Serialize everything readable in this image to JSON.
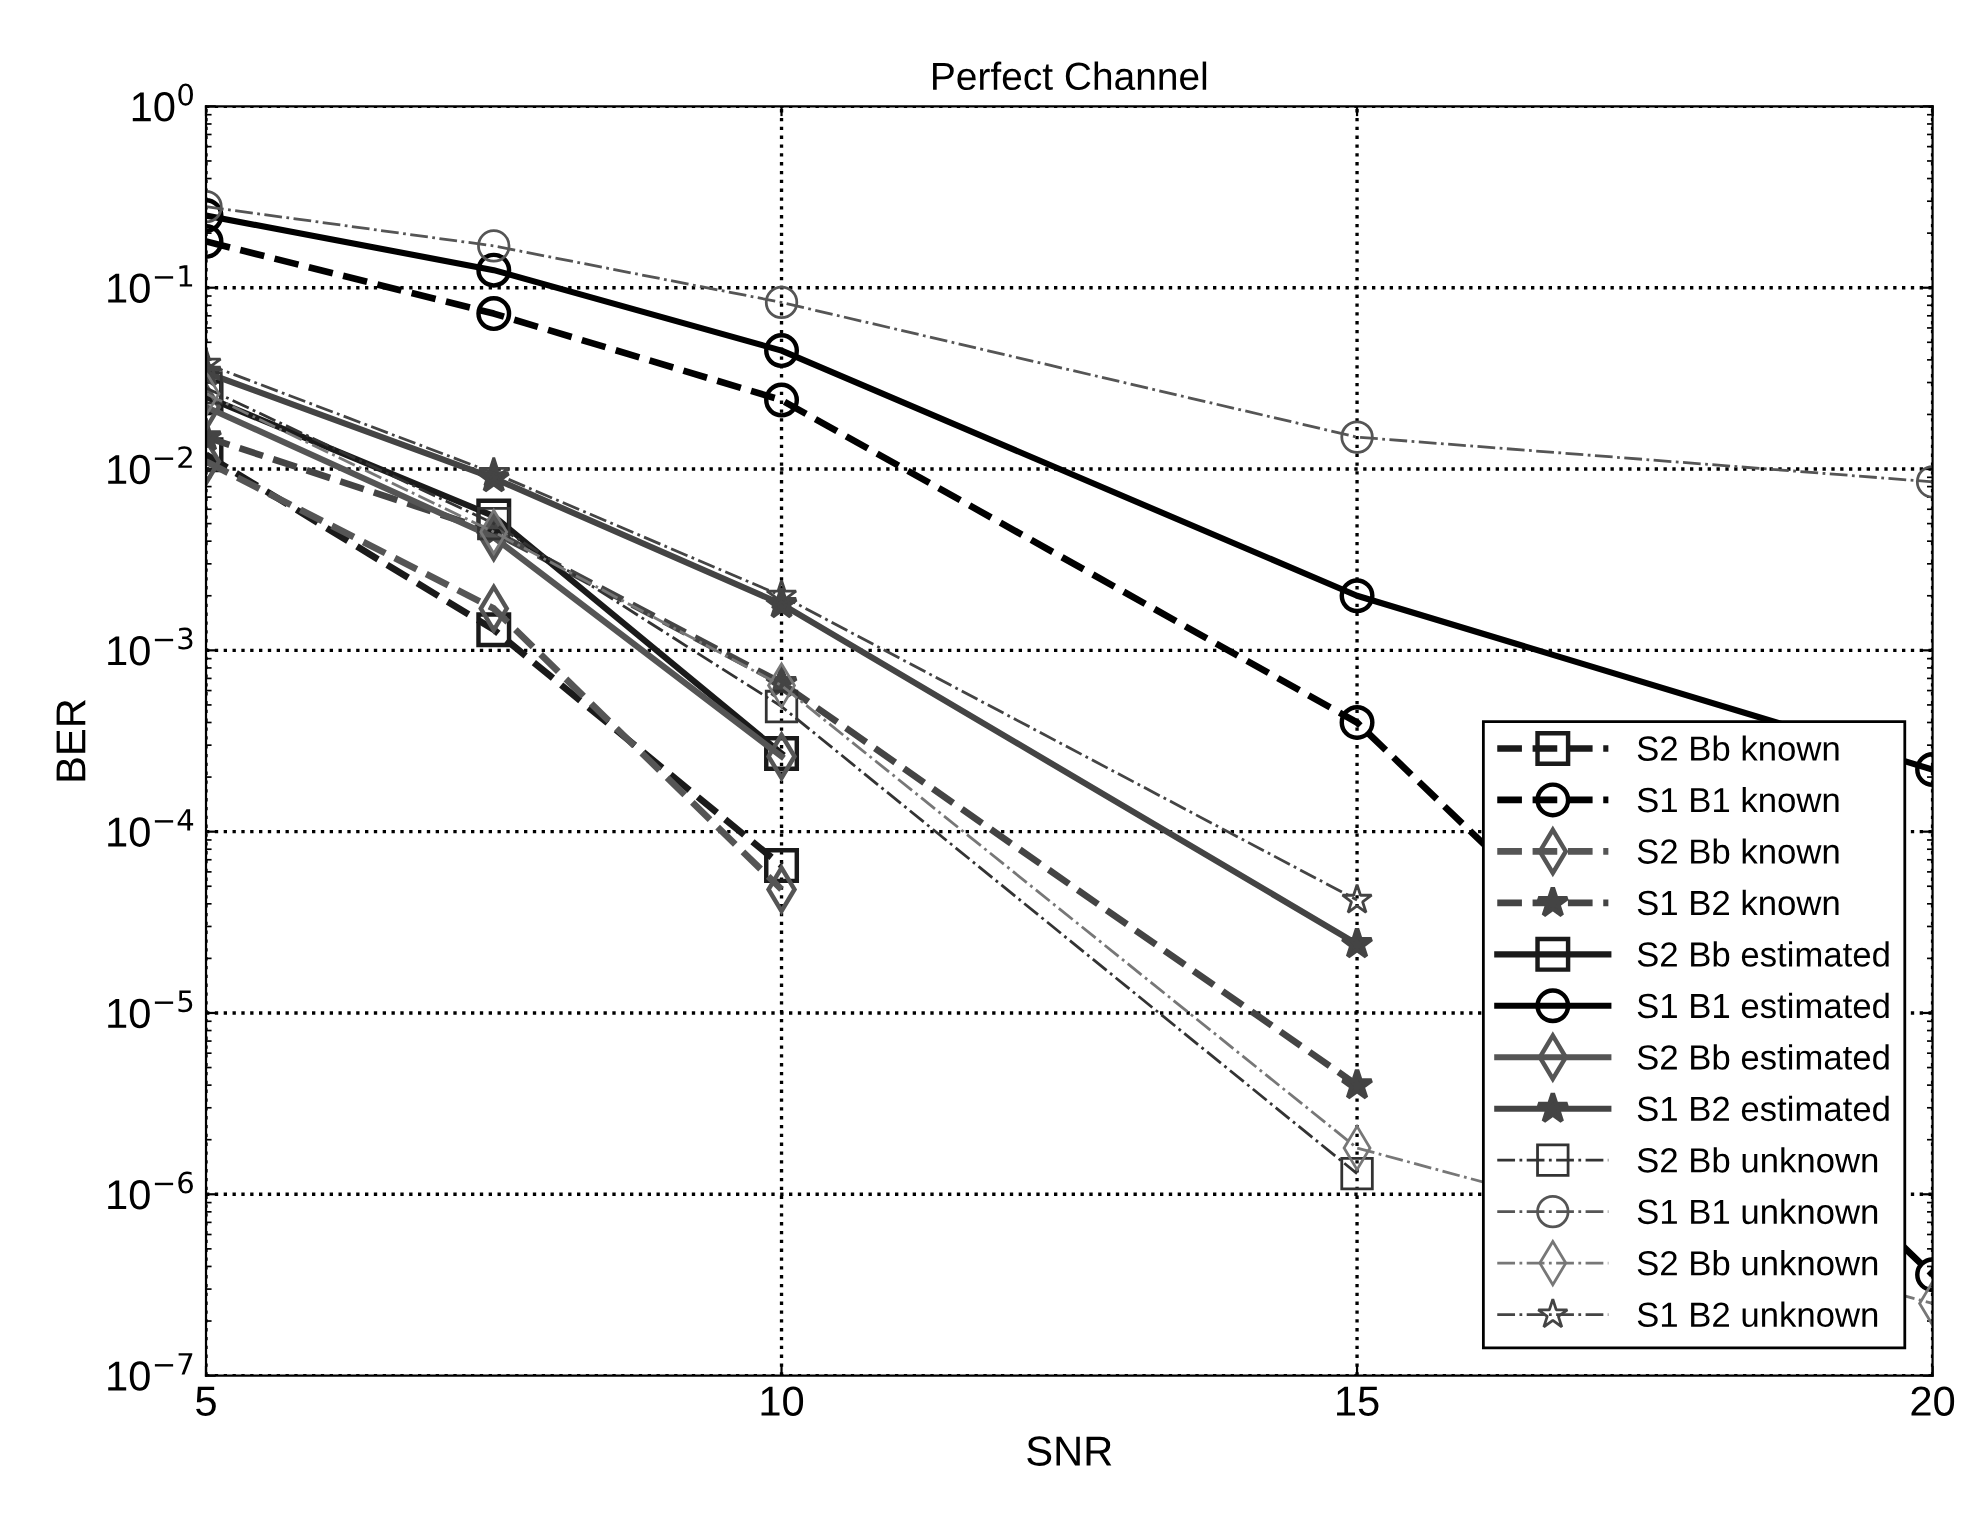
{
  "chart_data": {
    "type": "line",
    "title": "Perfect Channel",
    "xlabel": "SNR",
    "ylabel": "BER",
    "x": [
      5,
      7.5,
      10,
      15,
      20
    ],
    "series": [
      {
        "name": "S2 Bb known",
        "color": "#1a1a1a",
        "marker": "square",
        "line_style": "dashed",
        "values": [
          0.012,
          0.0013,
          6.5e-05,
          null,
          null
        ]
      },
      {
        "name": "S1 B1 known",
        "color": "#000000",
        "marker": "circle",
        "line_style": "dashed",
        "values": [
          0.18,
          0.072,
          0.024,
          0.0004,
          3.6e-07
        ]
      },
      {
        "name": "S2 Bb known",
        "color": "#555555",
        "marker": "diamond",
        "line_style": "dashed",
        "values": [
          0.011,
          0.0017,
          4.8e-05,
          null,
          null
        ]
      },
      {
        "name": "S1 B2 known",
        "color": "#444444",
        "marker": "star",
        "line_style": "dashed",
        "values": [
          0.015,
          0.0045,
          0.00066,
          4e-06,
          null
        ]
      },
      {
        "name": "S2 Bb estimated",
        "color": "#1a1a1a",
        "marker": "square",
        "line_style": "solid",
        "values": [
          0.025,
          0.0055,
          0.00027,
          null,
          null
        ]
      },
      {
        "name": "S1 B1 estimated",
        "color": "#000000",
        "marker": "circle",
        "line_style": "solid",
        "values": [
          0.25,
          0.125,
          0.045,
          0.002,
          0.00022
        ]
      },
      {
        "name": "S2 Bb estimated",
        "color": "#555555",
        "marker": "diamond",
        "line_style": "solid",
        "values": [
          0.022,
          0.0042,
          0.00026,
          null,
          null
        ]
      },
      {
        "name": "S1 B2 estimated",
        "color": "#444444",
        "marker": "star",
        "line_style": "solid",
        "values": [
          0.034,
          0.0089,
          0.0018,
          2.4e-05,
          null
        ]
      },
      {
        "name": "S2 Bb unknown",
        "color": "#333333",
        "marker": "square",
        "line_style": "dashdot",
        "values": [
          0.028,
          0.005,
          0.00049,
          1.3e-06,
          null
        ]
      },
      {
        "name": "S1 B1 unknown",
        "color": "#555555",
        "marker": "circle",
        "line_style": "dashdot",
        "values": [
          0.28,
          0.17,
          0.083,
          0.015,
          0.0085
        ]
      },
      {
        "name": "S2 Bb unknown",
        "color": "#777777",
        "marker": "diamond",
        "line_style": "dashdot",
        "values": [
          0.026,
          0.0045,
          0.00064,
          1.8e-06,
          2.5e-07
        ]
      },
      {
        "name": "S1 B2 unknown",
        "color": "#444444",
        "marker": "star",
        "line_style": "dashdot",
        "values": [
          0.038,
          0.0095,
          0.002,
          4.2e-05,
          null
        ]
      }
    ],
    "log": "y",
    "xlim": [
      5,
      20
    ],
    "xticks": [
      5,
      10,
      15,
      20
    ],
    "ylim": [
      1e-07,
      1
    ],
    "yticks": [
      {
        "value": 1e-07,
        "label": "10$^{−7}$"
      },
      {
        "value": 1e-06,
        "label": "10$^{−6}$"
      },
      {
        "value": 1e-05,
        "label": "10$^{−5}$"
      },
      {
        "value": 0.0001,
        "label": "10$^{−4}$"
      },
      {
        "value": 0.001,
        "label": "10$^{−3}$"
      },
      {
        "value": 0.01,
        "label": "10$^{−2}$"
      },
      {
        "value": 0.1,
        "label": "10$^{−1}$"
      },
      {
        "value": 1,
        "label": "10$^{0}$"
      }
    ],
    "grid": true,
    "legend": "bottom right"
  }
}
